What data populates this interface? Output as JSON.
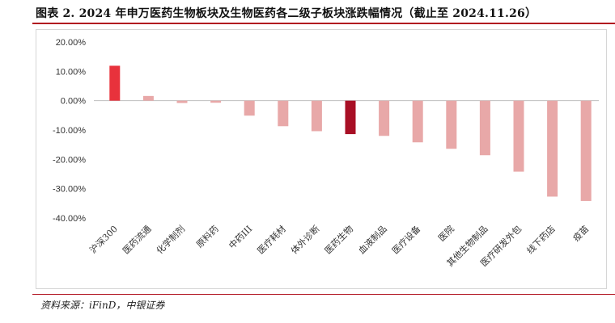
{
  "title": "图表 2. 2024 年申万医药生物板块及生物医药各二级子板块涨跌幅情况（截止至 2024.11.26）",
  "source": "资料来源：iFinD，中银证券",
  "colors": {
    "accent": "#b1121f",
    "bar_light": "#e8a8a8",
    "bar_first": "#e8323c",
    "bar_highlight": "#a80f25"
  },
  "chart_data": {
    "type": "bar",
    "title": "图表 2. 2024 年申万医药生物板块及生物医药各二级子板块涨跌幅情况（截止至 2024.11.26）",
    "xlabel": "",
    "ylabel": "",
    "categories": [
      "沪深300",
      "医药流通",
      "化学制剂",
      "原料药",
      "中药III",
      "医疗耗材",
      "体外诊断",
      "医药生物",
      "血液制品",
      "医疗设备",
      "医院",
      "其他生物制品",
      "医疗研发外包",
      "线下药店",
      "疫苗"
    ],
    "values": [
      11.9,
      1.6,
      -0.8,
      -0.7,
      -5.1,
      -8.7,
      -10.4,
      -11.4,
      -12.0,
      -14.2,
      -16.4,
      -18.6,
      -24.2,
      -32.7,
      -34.2
    ],
    "ylim": [
      -40,
      20
    ],
    "yticks": [
      20,
      10,
      0,
      -10,
      -20,
      -30,
      -40
    ],
    "ytick_labels": [
      "20.00%",
      "10.00%",
      "0.00%",
      "-10.00%",
      "-20.00%",
      "-30.00%",
      "-40.00%"
    ],
    "highlight": {
      "沪深300": "bar_first",
      "医药生物": "bar_highlight"
    },
    "grid": false,
    "legend": "none"
  }
}
